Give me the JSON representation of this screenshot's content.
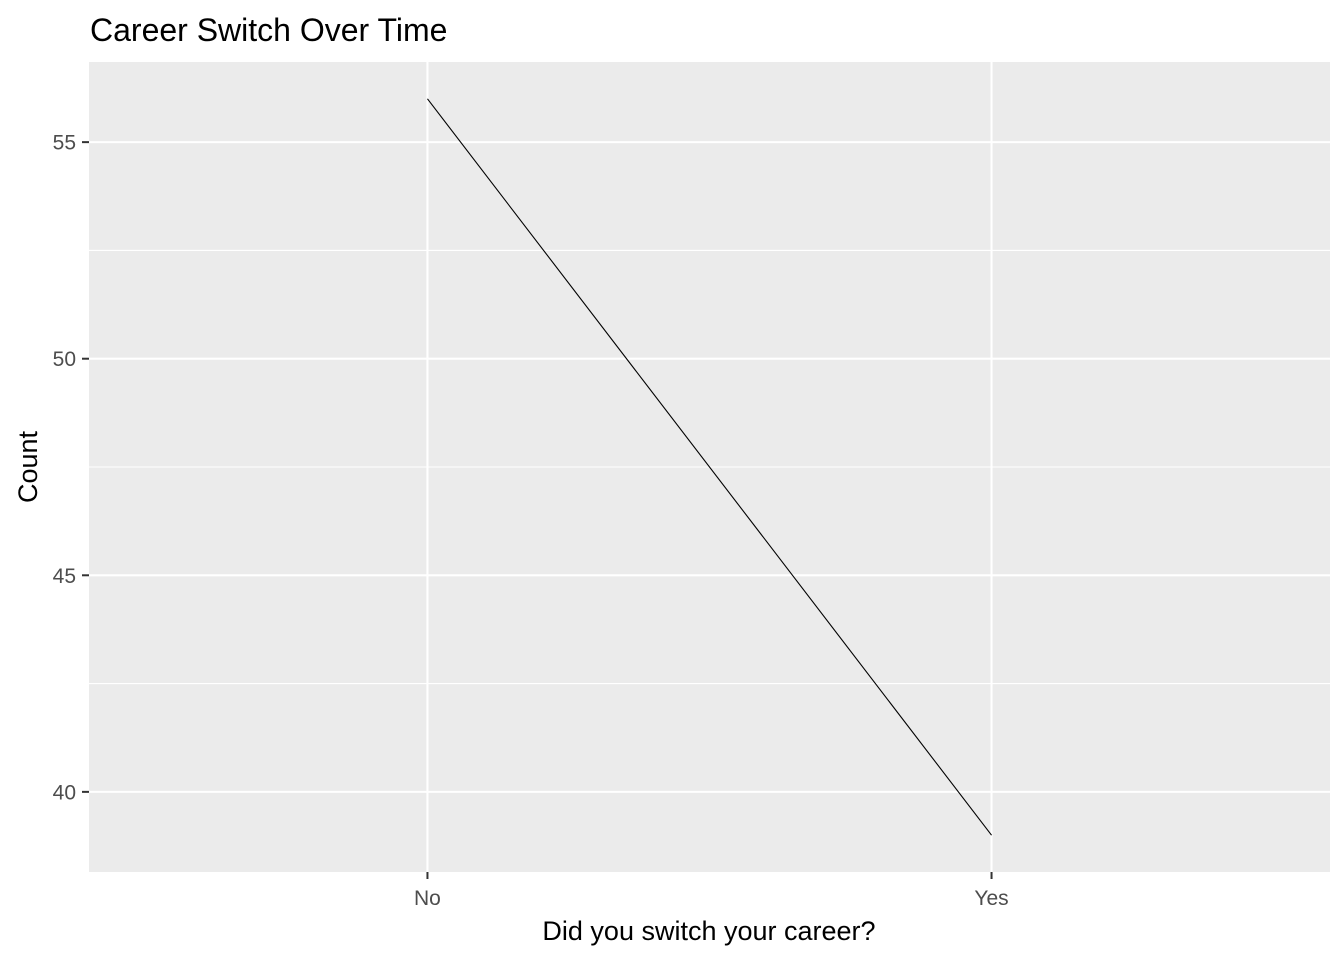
{
  "chart_data": {
    "type": "line",
    "title": "Career Switch Over Time",
    "xlabel": "Did you switch your career?",
    "ylabel": "Count",
    "categories": [
      "No",
      "Yes"
    ],
    "series": [
      {
        "values": [
          56,
          39
        ]
      }
    ],
    "ylim": [
      38.15,
      56.85
    ],
    "yticks": [
      40,
      45,
      50,
      55
    ],
    "ytick_labels": [
      "40",
      "45",
      "50",
      "55"
    ],
    "grid": true,
    "legend": "none",
    "colors": {
      "panel_background": "#ebebeb",
      "grid": "#ffffff",
      "line": "#000000",
      "tick_label": "#4d4d4d",
      "tick_mark": "#333333"
    }
  }
}
